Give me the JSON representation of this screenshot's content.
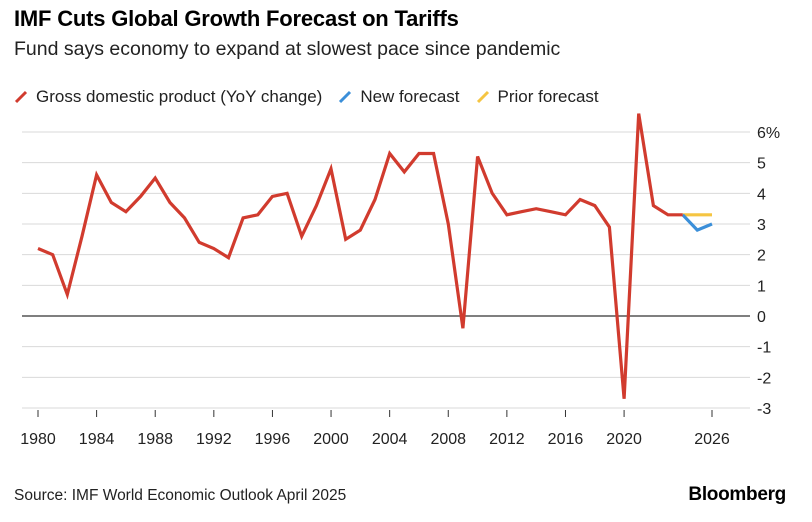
{
  "title": "IMF Cuts Global Growth Forecast on Tariffs",
  "subtitle": "Fund says economy to expand at slowest pace since pandemic",
  "source": "Source: IMF World Economic Outlook April 2025",
  "brand": "Bloomberg",
  "chart_data": {
    "type": "line",
    "ylim": [
      -3,
      6
    ],
    "xlim": [
      1980,
      2026
    ],
    "y_ticks": [
      "-3",
      "-2",
      "-1",
      "0",
      "1",
      "2",
      "3",
      "4",
      "5",
      "6%"
    ],
    "x_ticks": [
      "1980",
      "1984",
      "1988",
      "1992",
      "1996",
      "2000",
      "2004",
      "2008",
      "2012",
      "2016",
      "2020",
      "2026"
    ],
    "legend_position": "top",
    "series": [
      {
        "name": "Gross domestic product (YoY change)",
        "color": "#d13b2e",
        "x": [
          1980,
          1981,
          1982,
          1983,
          1984,
          1985,
          1986,
          1987,
          1988,
          1989,
          1990,
          1991,
          1992,
          1993,
          1994,
          1995,
          1996,
          1997,
          1998,
          1999,
          2000,
          2001,
          2002,
          2003,
          2004,
          2005,
          2006,
          2007,
          2008,
          2009,
          2010,
          2011,
          2012,
          2013,
          2014,
          2015,
          2016,
          2017,
          2018,
          2019,
          2020,
          2021,
          2022,
          2023,
          2024
        ],
        "y": [
          2.2,
          2.0,
          0.7,
          2.6,
          4.6,
          3.7,
          3.4,
          3.9,
          4.5,
          3.7,
          3.2,
          2.4,
          2.2,
          1.9,
          3.2,
          3.3,
          3.9,
          4.0,
          2.6,
          3.6,
          4.8,
          2.5,
          2.8,
          3.8,
          5.3,
          4.7,
          5.3,
          5.3,
          3.0,
          -0.4,
          5.2,
          4.0,
          3.3,
          3.4,
          3.5,
          3.4,
          3.3,
          3.8,
          3.6,
          2.9,
          -2.7,
          6.6,
          3.6,
          3.3,
          3.3
        ]
      },
      {
        "name": "New forecast",
        "color": "#3b8fd9",
        "x": [
          2024,
          2025,
          2026
        ],
        "y": [
          3.3,
          2.8,
          3.0
        ]
      },
      {
        "name": "Prior forecast",
        "color": "#f5c542",
        "x": [
          2024,
          2025,
          2026
        ],
        "y": [
          3.3,
          3.3,
          3.3
        ]
      }
    ]
  }
}
